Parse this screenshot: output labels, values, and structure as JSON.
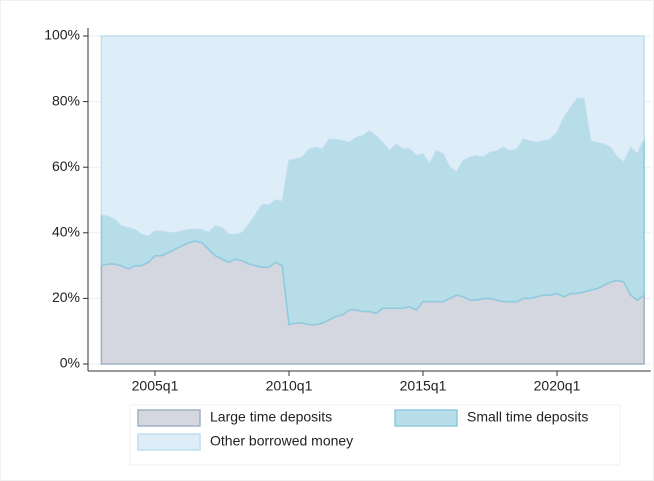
{
  "chart_data": {
    "type": "stacked_area",
    "x": [
      "2003q1",
      "2003q2",
      "2003q3",
      "2003q4",
      "2004q1",
      "2004q2",
      "2004q3",
      "2004q4",
      "2005q1",
      "2005q2",
      "2005q3",
      "2005q4",
      "2006q1",
      "2006q2",
      "2006q3",
      "2006q4",
      "2007q1",
      "2007q2",
      "2007q3",
      "2007q4",
      "2008q1",
      "2008q2",
      "2008q3",
      "2008q4",
      "2009q1",
      "2009q2",
      "2009q3",
      "2009q4",
      "2010q1",
      "2010q2",
      "2010q3",
      "2010q4",
      "2011q1",
      "2011q2",
      "2011q3",
      "2011q4",
      "2012q1",
      "2012q2",
      "2012q3",
      "2012q4",
      "2013q1",
      "2013q2",
      "2013q3",
      "2013q4",
      "2014q1",
      "2014q2",
      "2014q3",
      "2014q4",
      "2015q1",
      "2015q2",
      "2015q3",
      "2015q4",
      "2016q1",
      "2016q2",
      "2016q3",
      "2016q4",
      "2017q1",
      "2017q2",
      "2017q3",
      "2017q4",
      "2018q1",
      "2018q2",
      "2018q3",
      "2018q4",
      "2019q1",
      "2019q2",
      "2019q3",
      "2019q4",
      "2020q1",
      "2020q2",
      "2020q3",
      "2020q4",
      "2021q1",
      "2021q2",
      "2021q3",
      "2021q4",
      "2022q1",
      "2022q2",
      "2022q3",
      "2022q4",
      "2023q1",
      "2023q2"
    ],
    "series": [
      {
        "name": "Large time deposits",
        "color": "#d4d7df",
        "stroke": "#9fb0c2",
        "values": [
          30,
          30.5,
          30.5,
          30,
          29,
          30,
          30,
          31,
          33,
          33,
          34,
          35,
          36,
          37,
          37.5,
          37,
          35,
          33,
          32,
          31,
          32,
          31.5,
          30.5,
          30,
          29.5,
          29.5,
          31,
          30,
          12,
          12.5,
          12.5,
          12,
          12,
          12.5,
          13.5,
          14.5,
          15,
          16.5,
          16.5,
          16,
          16,
          15.5,
          17,
          17,
          17,
          17,
          17.5,
          16.5,
          19,
          19,
          19,
          19,
          20,
          21,
          20.5,
          19.5,
          19.5,
          20,
          20,
          19.5,
          19,
          19,
          19,
          20,
          20,
          20.5,
          21,
          21,
          21.5,
          20.5,
          21.5,
          21.5,
          22,
          22.5,
          23,
          24,
          25,
          25.5,
          25,
          21,
          19.5,
          21
        ]
      },
      {
        "name": "Small time deposits",
        "color": "#b7dde9",
        "stroke": "#8ecbe0",
        "values": [
          15.5,
          14.5,
          13.5,
          12,
          12.5,
          11,
          9.5,
          8,
          7.5,
          7.5,
          6,
          5,
          4.5,
          4,
          3.5,
          4,
          5,
          9,
          9.5,
          8.5,
          7.5,
          8.5,
          12,
          15.5,
          19,
          19,
          19,
          19.5,
          50,
          50,
          50.5,
          53.5,
          54,
          53,
          55,
          54,
          53,
          51,
          52.5,
          53.5,
          55,
          54,
          50.5,
          48,
          50,
          48.5,
          48,
          47,
          45,
          42,
          46,
          45,
          40,
          37.5,
          41.5,
          43.5,
          44,
          43,
          44.5,
          45.5,
          47,
          46,
          46.5,
          48.5,
          48,
          47,
          47,
          47.5,
          49,
          54.5,
          56.5,
          59.5,
          59,
          45.5,
          44.5,
          43,
          41,
          37.5,
          36.5,
          45,
          44.5,
          47.5
        ]
      },
      {
        "name": "Other borrowed money",
        "color": "#deeef8",
        "stroke": "#c0deef",
        "values": [
          54.5,
          55,
          56,
          58,
          58.5,
          59,
          60.5,
          61,
          59.5,
          59.5,
          60,
          60,
          59.5,
          59,
          59,
          59,
          60,
          58,
          58.5,
          60.5,
          60.5,
          60,
          57.5,
          54.5,
          51.5,
          51.5,
          50,
          50.5,
          38,
          37.5,
          37,
          34.5,
          34,
          34.5,
          31.5,
          31.5,
          32,
          32.5,
          31,
          30.5,
          29,
          30.5,
          32.5,
          35,
          33,
          34.5,
          34.5,
          36.5,
          36,
          39,
          35,
          36,
          40,
          41.5,
          38,
          37,
          36.5,
          37,
          35.5,
          35,
          34,
          35,
          34.5,
          31.5,
          32,
          32.5,
          32,
          31.5,
          29.5,
          25,
          22,
          19,
          19,
          32,
          32.5,
          33,
          34,
          37,
          38.5,
          34,
          36,
          31.5
        ]
      }
    ],
    "xlim": [
      "2002q3",
      "2023q3"
    ],
    "xticks": [
      "2005q1",
      "2010q1",
      "2015q1",
      "2020q1"
    ],
    "ylim": [
      0,
      100
    ],
    "yticks": [
      {
        "value": 0,
        "label": "0%"
      },
      {
        "value": 20,
        "label": "20%"
      },
      {
        "value": 40,
        "label": "40%"
      },
      {
        "value": 60,
        "label": "60%"
      },
      {
        "value": 80,
        "label": "80%"
      },
      {
        "value": 100,
        "label": "100%"
      }
    ],
    "grid": true
  }
}
